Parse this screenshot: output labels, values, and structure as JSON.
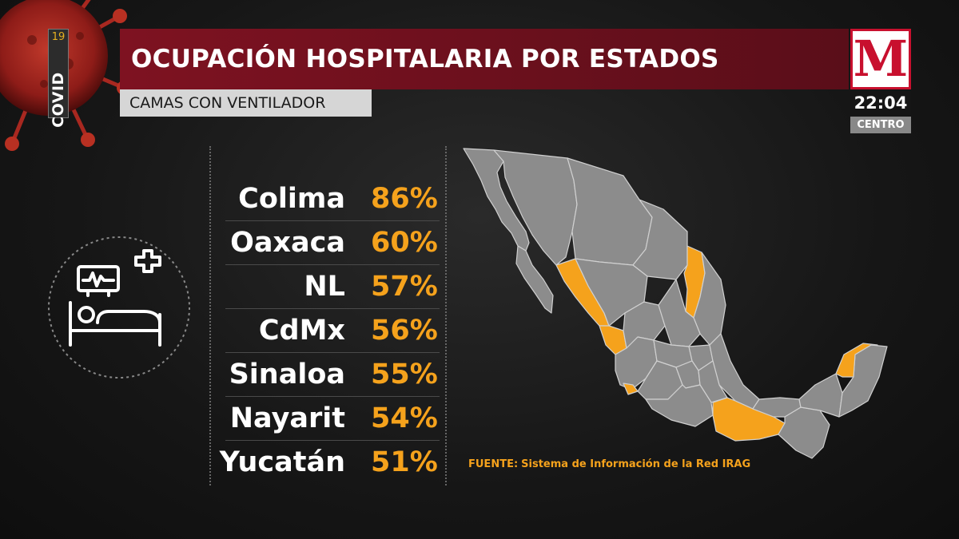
{
  "badge": {
    "number": "19",
    "label": "COVID"
  },
  "title": "OCUPACIÓN HOSPITALARIA POR ESTADOS",
  "subtitle": "CAMAS CON VENTILADOR",
  "broadcaster": {
    "logo_letter": "M",
    "time": "22:04",
    "zone": "CENTRO"
  },
  "icon": {
    "name": "ventilator-bed-icon"
  },
  "colors": {
    "highlight": "#f5a21c",
    "map_default": "#8c8c8c",
    "title_bar": "#7e1221",
    "logo": "#c8102e"
  },
  "states": [
    {
      "name": "Colima",
      "value": "86%"
    },
    {
      "name": "Oaxaca",
      "value": "60%"
    },
    {
      "name": "NL",
      "value": "57%"
    },
    {
      "name": "CdMx",
      "value": "56%"
    },
    {
      "name": "Sinaloa",
      "value": "55%"
    },
    {
      "name": "Nayarit",
      "value": "54%"
    },
    {
      "name": "Yucatán",
      "value": "51%"
    }
  ],
  "source": {
    "label": "FUENTE:",
    "text": "Sistema de Información de la Red IRAG"
  }
}
